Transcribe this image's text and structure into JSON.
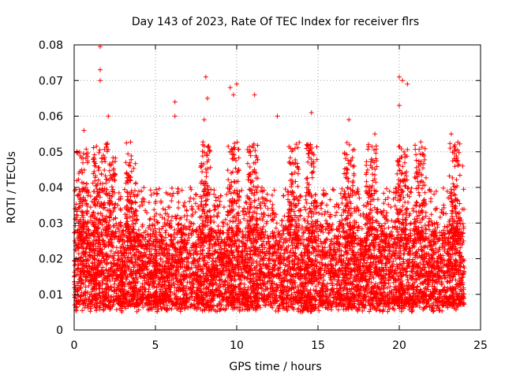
{
  "chart_data": {
    "type": "scatter",
    "title": "Day 143 of 2023, Rate Of TEC Index for receiver flrs",
    "xlabel": "GPS time / hours",
    "ylabel": "ROTI / TECUs",
    "xlim": [
      0,
      25
    ],
    "ylim": [
      0,
      0.08
    ],
    "x_ticks": [
      "0",
      "5",
      "10",
      "15",
      "20",
      "25"
    ],
    "y_ticks": [
      "0",
      "0.01",
      "0.02",
      "0.03",
      "0.04",
      "0.05",
      "0.06",
      "0.07",
      "0.08"
    ],
    "grid": true,
    "marker": "+",
    "color": "#ff0000",
    "series": [
      {
        "name": "flrs",
        "x_range": [
          0,
          24
        ],
        "typical_range": [
          0.005,
          0.04
        ],
        "notable_points": [
          {
            "x": 1.6,
            "y": 0.0795
          },
          {
            "x": 1.6,
            "y": 0.073
          },
          {
            "x": 1.6,
            "y": 0.07
          },
          {
            "x": 2.1,
            "y": 0.06
          },
          {
            "x": 6.2,
            "y": 0.064
          },
          {
            "x": 6.2,
            "y": 0.06
          },
          {
            "x": 8.1,
            "y": 0.071
          },
          {
            "x": 8.2,
            "y": 0.065
          },
          {
            "x": 8.0,
            "y": 0.059
          },
          {
            "x": 9.6,
            "y": 0.068
          },
          {
            "x": 9.8,
            "y": 0.066
          },
          {
            "x": 10.0,
            "y": 0.069
          },
          {
            "x": 11.1,
            "y": 0.066
          },
          {
            "x": 12.5,
            "y": 0.06
          },
          {
            "x": 14.6,
            "y": 0.061
          },
          {
            "x": 16.9,
            "y": 0.059
          },
          {
            "x": 20.0,
            "y": 0.071
          },
          {
            "x": 20.2,
            "y": 0.07
          },
          {
            "x": 20.5,
            "y": 0.069
          },
          {
            "x": 20.0,
            "y": 0.063
          },
          {
            "x": 23.2,
            "y": 0.055
          },
          {
            "x": 23.9,
            "y": 0.046
          },
          {
            "x": 0.6,
            "y": 0.056
          },
          {
            "x": 18.5,
            "y": 0.055
          }
        ],
        "note": "Several thousand points, dense band between 0.005 and 0.03 TECU across 0–24 h"
      }
    ]
  }
}
